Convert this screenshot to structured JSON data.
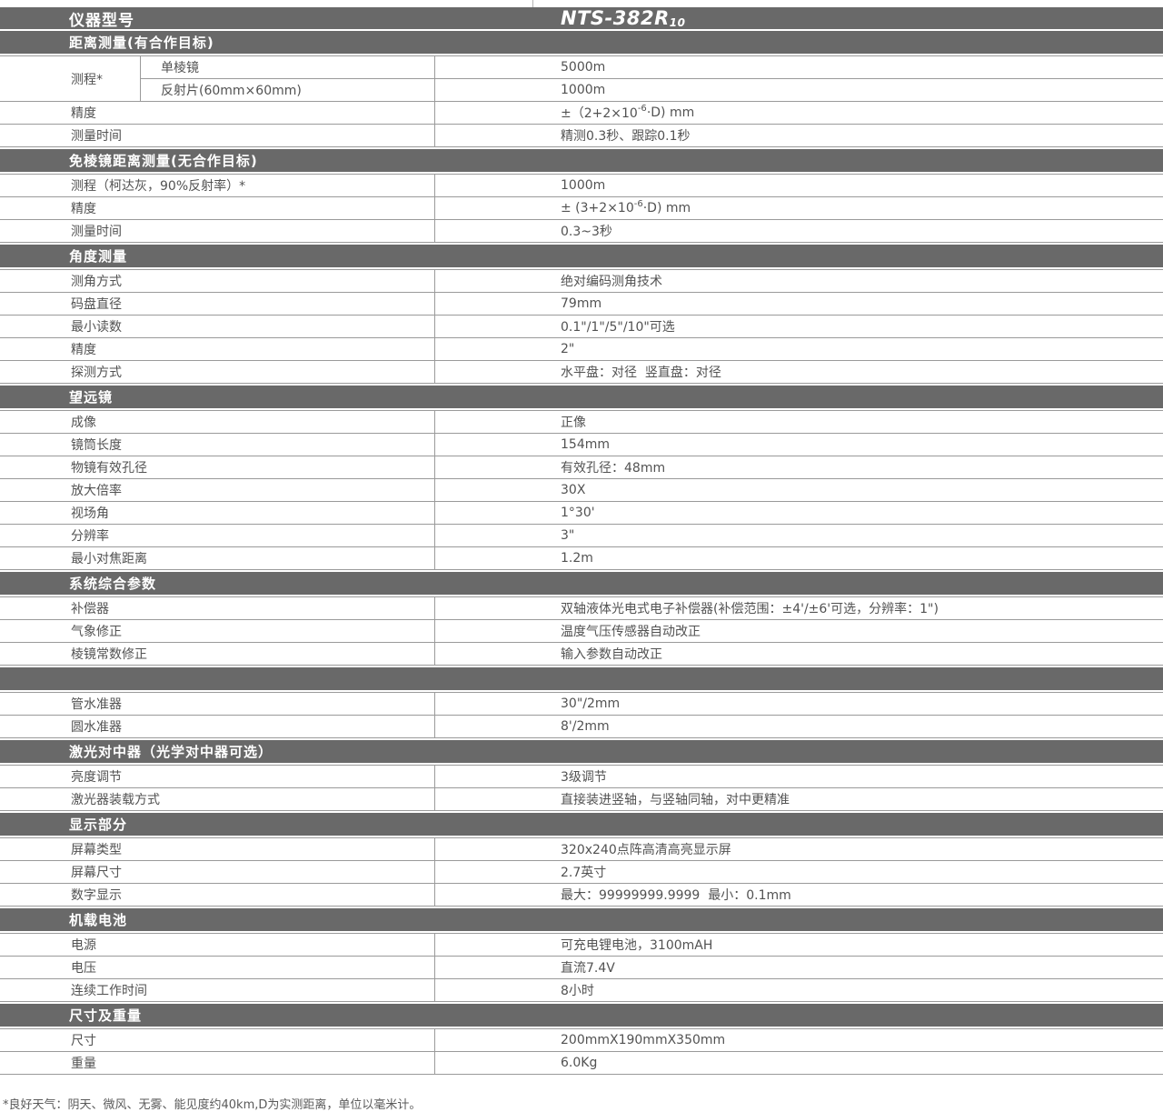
{
  "header": {
    "label": "仪器型号",
    "model_main": "NTS-382R",
    "model_sub": "10"
  },
  "sections": [
    {
      "title": "距离测量(有合作目标)",
      "group": {
        "label": "测程*",
        "subrows": [
          {
            "label": "单棱镜",
            "value": "5000m"
          },
          {
            "label": "反射片(60mm×60mm)",
            "value": "1000m"
          }
        ]
      },
      "rows": [
        {
          "label": "精度",
          "value_pre": "±（2+2×10",
          "value_sup": "-6",
          "value_post": "·D) mm"
        },
        {
          "label": "测量时间",
          "value": "精测0.3秒、跟踪0.1秒"
        }
      ]
    },
    {
      "title": "免棱镜距离测量(无合作目标)",
      "rows": [
        {
          "label": "测程（柯达灰，90%反射率）*",
          "value": "1000m"
        },
        {
          "label": "精度",
          "value_pre": "± (3+2×10",
          "value_sup": "-6",
          "value_post": "·D) mm"
        },
        {
          "label": "测量时间",
          "value": "0.3~3秒"
        }
      ]
    },
    {
      "title": "角度测量",
      "rows": [
        {
          "label": "测角方式",
          "value": "绝对编码测角技术"
        },
        {
          "label": "码盘直径",
          "value": "79mm"
        },
        {
          "label": "最小读数",
          "value": "0.1\"/1\"/5\"/10\"可选"
        },
        {
          "label": "精度",
          "value": "2\""
        },
        {
          "label": "探测方式",
          "value": "水平盘：对径  竖直盘：对径"
        }
      ]
    },
    {
      "title": "望远镜",
      "rows": [
        {
          "label": "成像",
          "value": "正像"
        },
        {
          "label": "镜筒长度",
          "value": "154mm"
        },
        {
          "label": "物镜有效孔径",
          "value": "有效孔径：48mm"
        },
        {
          "label": "放大倍率",
          "value": "30X"
        },
        {
          "label": "视场角",
          "value": "1°30'"
        },
        {
          "label": "分辨率",
          "value": "3\""
        },
        {
          "label": "最小对焦距离",
          "value": "1.2m"
        }
      ]
    },
    {
      "title": "系统综合参数",
      "rows": [
        {
          "label": "补偿器",
          "value": "双轴液体光电式电子补偿器(补偿范围：±4'/±6'可选，分辨率：1\")"
        },
        {
          "label": "气象修正",
          "value": "温度气压传感器自动改正"
        },
        {
          "label": "棱镜常数修正",
          "value": "输入参数自动改正"
        }
      ]
    },
    {
      "title": "",
      "rows": [
        {
          "label": "管水准器",
          "value": "30\"/2mm"
        },
        {
          "label": "圆水准器",
          "value": "8'/2mm"
        }
      ]
    },
    {
      "title": "激光对中器（光学对中器可选）",
      "rows": [
        {
          "label": "亮度调节",
          "value": "3级调节"
        },
        {
          "label": "激光器装载方式",
          "value": "直接装进竖轴，与竖轴同轴，对中更精准"
        }
      ]
    },
    {
      "title": "显示部分",
      "rows": [
        {
          "label": "屏幕类型",
          "value": "320x240点阵高清高亮显示屏"
        },
        {
          "label": "屏幕尺寸",
          "value": "2.7英寸"
        },
        {
          "label": "数字显示",
          "value": "最大：99999999.9999  最小：0.1mm"
        }
      ]
    },
    {
      "title": "机载电池",
      "rows": [
        {
          "label": "电源",
          "value": "可充电锂电池，3100mAH"
        },
        {
          "label": "电压",
          "value": "直流7.4V"
        },
        {
          "label": "连续工作时间",
          "value": "8小时"
        }
      ]
    },
    {
      "title": "尺寸及重量",
      "rows": [
        {
          "label": "尺寸",
          "value": "200mmX190mmX350mm"
        },
        {
          "label": "重量",
          "value": "6.0Kg"
        }
      ]
    }
  ],
  "footnote": "*良好天气：阴天、微风、无雾、能见度约40km,D为实测距离，单位以毫米计。",
  "colors": {
    "bar_gray": "#696969",
    "border_gray": "#9a9a9a",
    "text_gray": "#525252"
  }
}
